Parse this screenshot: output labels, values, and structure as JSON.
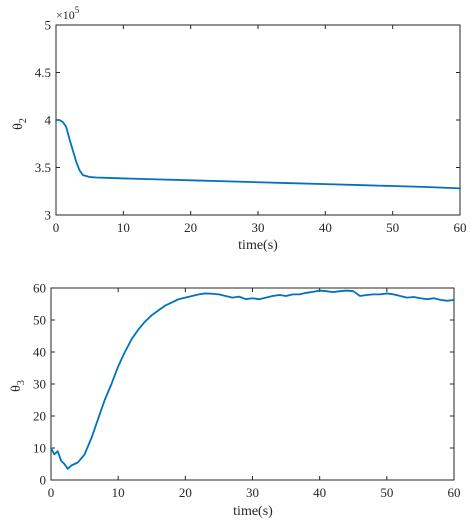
{
  "colors": {
    "series": "#0072BD",
    "axes": "#262626",
    "background": "#ffffff"
  },
  "chart_data": [
    {
      "type": "line",
      "title": "",
      "xlabel": "time(s)",
      "ylabel": "θ",
      "ylabel_sub": "2",
      "y_multiplier": "×10",
      "y_multiplier_exp": "5",
      "xlim": [
        0,
        60
      ],
      "ylim": [
        300000,
        500000
      ],
      "x_ticks": [
        0,
        10,
        20,
        30,
        40,
        50,
        60
      ],
      "y_ticks": [
        300000,
        350000,
        400000,
        450000,
        500000
      ],
      "x_tick_labels": [
        "0",
        "10",
        "20",
        "30",
        "40",
        "50",
        "60"
      ],
      "y_tick_labels": [
        "3",
        "3.5",
        "4",
        "4.5",
        "5"
      ],
      "grid": false,
      "series": [
        {
          "x": [
            0,
            0.5,
            1,
            1.5,
            2,
            2.5,
            3,
            3.5,
            4,
            5,
            6,
            8,
            10,
            15,
            20,
            25,
            30,
            35,
            40,
            45,
            50,
            55,
            60
          ],
          "values": [
            400000,
            400000,
            398000,
            393000,
            380000,
            368000,
            356000,
            347000,
            342000,
            340000,
            339500,
            339000,
            338500,
            337500,
            336500,
            335500,
            334500,
            333500,
            332500,
            331500,
            330500,
            329500,
            328000
          ]
        }
      ]
    },
    {
      "type": "line",
      "title": "",
      "xlabel": "time(s)",
      "ylabel": "θ",
      "ylabel_sub": "3",
      "xlim": [
        0,
        60
      ],
      "ylim": [
        0,
        60
      ],
      "x_ticks": [
        0,
        10,
        20,
        30,
        40,
        50,
        60
      ],
      "y_ticks": [
        0,
        10,
        20,
        30,
        40,
        50,
        60
      ],
      "x_tick_labels": [
        "0",
        "10",
        "20",
        "30",
        "40",
        "50",
        "60"
      ],
      "y_tick_labels": [
        "0",
        "10",
        "20",
        "30",
        "40",
        "50",
        "60"
      ],
      "grid": false,
      "series": [
        {
          "x": [
            0,
            0.5,
            1,
            1.5,
            2,
            2.5,
            3,
            3.5,
            4,
            5,
            6,
            7,
            8,
            9,
            10,
            11,
            12,
            13,
            14,
            15,
            16,
            17,
            18,
            19,
            20,
            21,
            22,
            23,
            24,
            25,
            26,
            27,
            28,
            29,
            30,
            31,
            32,
            33,
            34,
            35,
            36,
            37,
            38,
            39,
            40,
            41,
            42,
            43,
            44,
            45,
            46,
            47,
            48,
            49,
            50,
            51,
            52,
            53,
            54,
            55,
            56,
            57,
            58,
            59,
            60
          ],
          "values": [
            10,
            8,
            9,
            6,
            5,
            3.5,
            4.5,
            5,
            5.5,
            8,
            13,
            19,
            25,
            30,
            35.5,
            40,
            44,
            47,
            49.5,
            51.5,
            53,
            54.5,
            55.5,
            56.5,
            57,
            57.5,
            58,
            58.3,
            58.2,
            58,
            57.5,
            57,
            57.3,
            56.5,
            56.8,
            56.5,
            57,
            57.5,
            57.8,
            57.5,
            58,
            58,
            58.5,
            58.8,
            59.2,
            59,
            58.7,
            59,
            59.2,
            59,
            57.5,
            57.8,
            58,
            58,
            58.3,
            58,
            57.5,
            57,
            57.2,
            56.8,
            56.5,
            56.8,
            56.3,
            56,
            56.3
          ]
        }
      ]
    }
  ]
}
